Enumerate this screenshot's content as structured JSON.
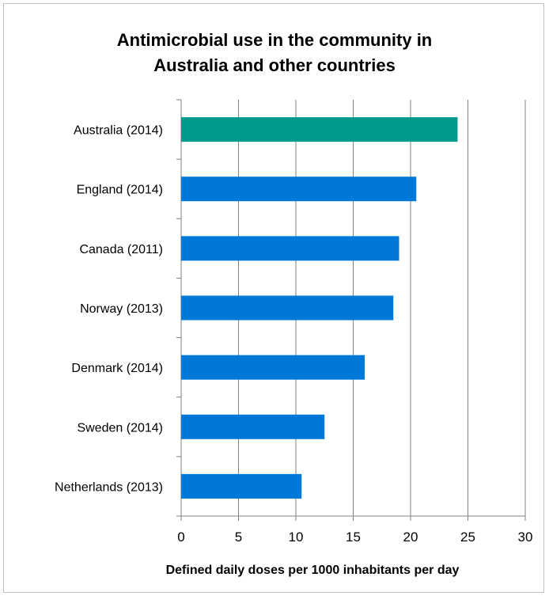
{
  "chart_data": {
    "type": "bar",
    "orientation": "horizontal",
    "title_line1": "Antimicrobial  use in the community in",
    "title_line2": "Australia and other countries",
    "xlabel": "Defined daily doses per 1000 inhabitants  per day",
    "ylabel": "",
    "categories": [
      "Australia (2014)",
      "England (2014)",
      "Canada (2011)",
      "Norway (2013)",
      "Denmark (2014)",
      "Sweden (2014)",
      "Netherlands (2013)"
    ],
    "values": [
      24.1,
      20.5,
      19.0,
      18.5,
      16.0,
      12.5,
      10.5
    ],
    "xlim": [
      0,
      30
    ],
    "xticks": [
      0,
      5,
      10,
      15,
      20,
      25,
      30
    ],
    "grid": "vertical",
    "legend": "none",
    "colors": {
      "highlight": "#009a8c",
      "default": "#0078d7",
      "grid": "#7f7f7f",
      "axis": "#7f7f7f"
    },
    "highlight_category": "Australia (2014)"
  }
}
